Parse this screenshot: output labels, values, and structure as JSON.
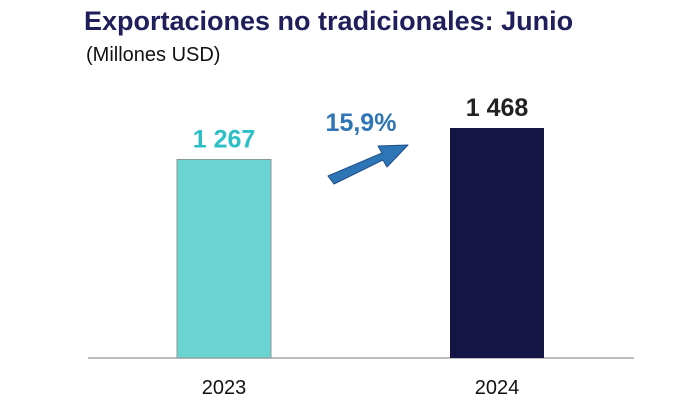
{
  "title": "Exportaciones no tradicionales: Junio",
  "subtitle": "(Millones USD)",
  "growth_label": "15,9%",
  "colors": {
    "bar_2023": "#6ad4d2",
    "bar_2024": "#151545",
    "growth": "#2e75b6",
    "title": "#1f1f5c",
    "axis": "#a6a6a6"
  },
  "chart_data": {
    "type": "bar",
    "categories": [
      "2023",
      "2024"
    ],
    "values": [
      1267,
      1468
    ],
    "value_labels": [
      "1 267",
      "1 468"
    ],
    "title": "Exportaciones no tradicionales: Junio",
    "ylabel": "",
    "xlabel": "",
    "ylim": [
      0,
      1468
    ],
    "grid": false,
    "legend": "none"
  }
}
